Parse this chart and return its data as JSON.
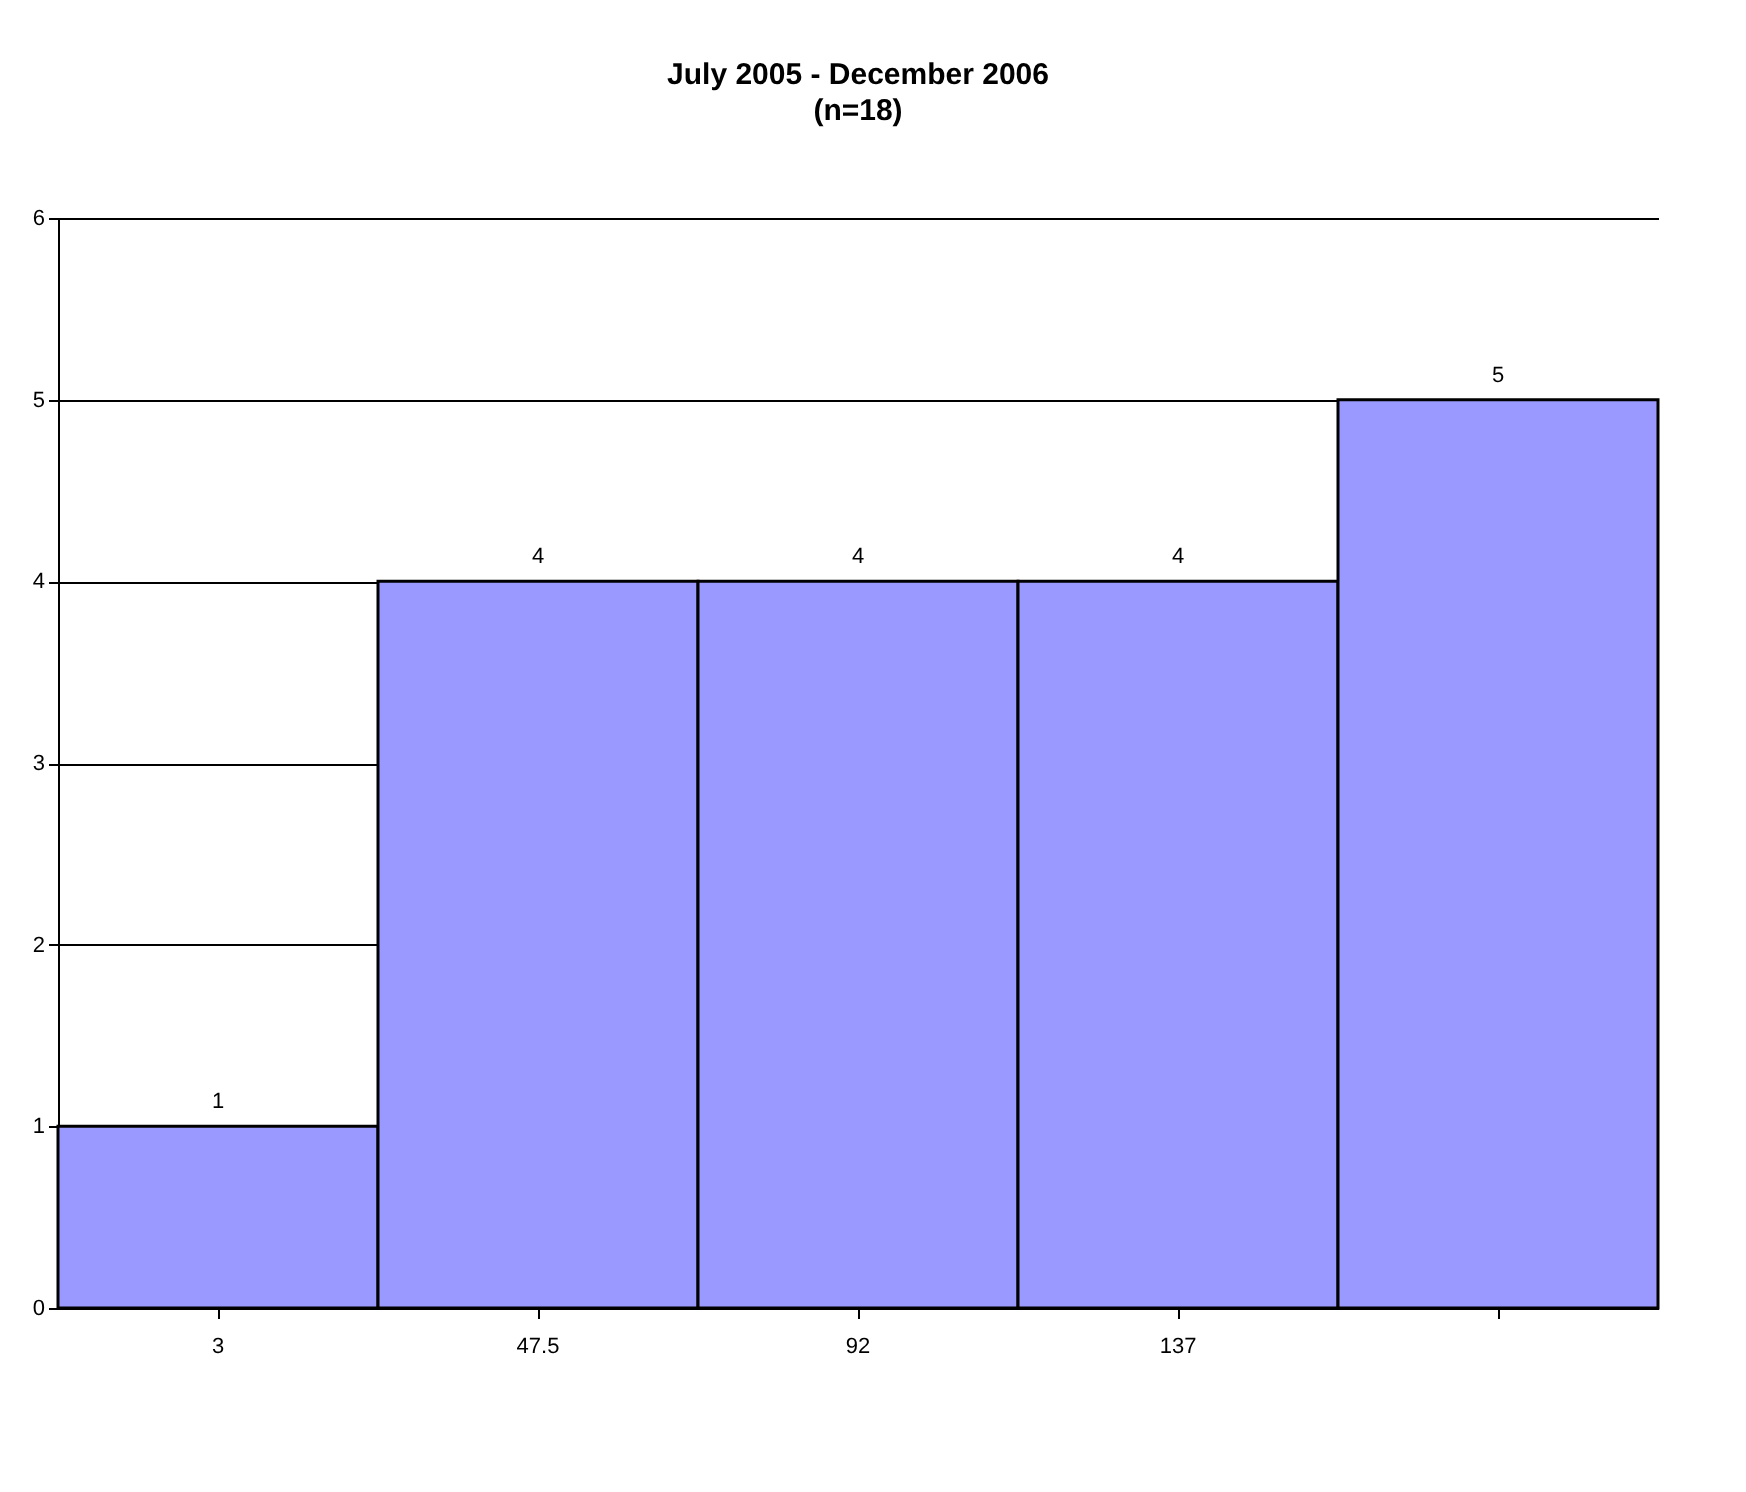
{
  "chart_data": {
    "type": "bar",
    "title": "July 2005 - December 2006",
    "subtitle": "(n=18)",
    "categories": [
      "3",
      "47.5",
      "92",
      "137",
      null
    ],
    "series": [
      {
        "color": "#9999ff",
        "values": [
          1,
          4,
          4,
          4,
          5
        ]
      }
    ],
    "ylim": [
      0,
      6
    ],
    "yticks": [
      0,
      1,
      2,
      3,
      4,
      5,
      6
    ],
    "grid": "y",
    "data_labels": true
  }
}
